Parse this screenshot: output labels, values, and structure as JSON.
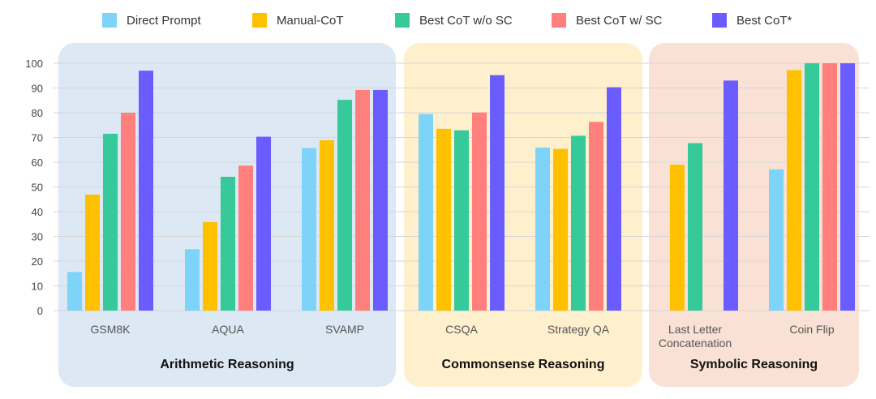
{
  "chart_data": {
    "type": "bar",
    "series": [
      {
        "name": "Direct Prompt",
        "color": "#7dd3f8",
        "values": [
          15.6,
          24.8,
          65.7,
          79.5,
          65.9,
          null,
          57.1
        ]
      },
      {
        "name": "Manual-CoT",
        "color": "#ffc000",
        "values": [
          46.9,
          35.8,
          68.9,
          73.5,
          65.4,
          59.0,
          97.2
        ]
      },
      {
        "name": "Best CoT w/o SC",
        "color": "#36c99a",
        "values": [
          71.5,
          54.1,
          85.2,
          72.9,
          70.7,
          67.7,
          100
        ]
      },
      {
        "name": "Best CoT w/ SC",
        "color": "#ff7f7c",
        "values": [
          80.0,
          58.6,
          89.2,
          80.1,
          76.3,
          null,
          100
        ]
      },
      {
        "name": "Best CoT*",
        "color": "#6a5cff",
        "values": [
          97.0,
          70.3,
          89.2,
          95.2,
          90.3,
          93.0,
          100
        ]
      }
    ],
    "groups": [
      {
        "title": "Arithmetic Reasoning",
        "bg": "#dce8f4",
        "categories": [
          [
            "GSM8K"
          ],
          [
            "AQUA"
          ],
          [
            "SVAMP"
          ]
        ]
      },
      {
        "title": "Commonsense Reasoning",
        "bg": "#fff0cd",
        "categories": [
          [
            "CSQA"
          ],
          [
            "Strategy QA"
          ]
        ]
      },
      {
        "title": "Symbolic Reasoning",
        "bg": "#f9e1d5",
        "categories": [
          [
            "Last Letter",
            "Concatenation"
          ],
          [
            "Coin Flip"
          ]
        ]
      }
    ],
    "ylim": [
      0,
      100
    ],
    "yticks": [
      0,
      10,
      20,
      30,
      40,
      50,
      60,
      70,
      80,
      90,
      100
    ]
  }
}
